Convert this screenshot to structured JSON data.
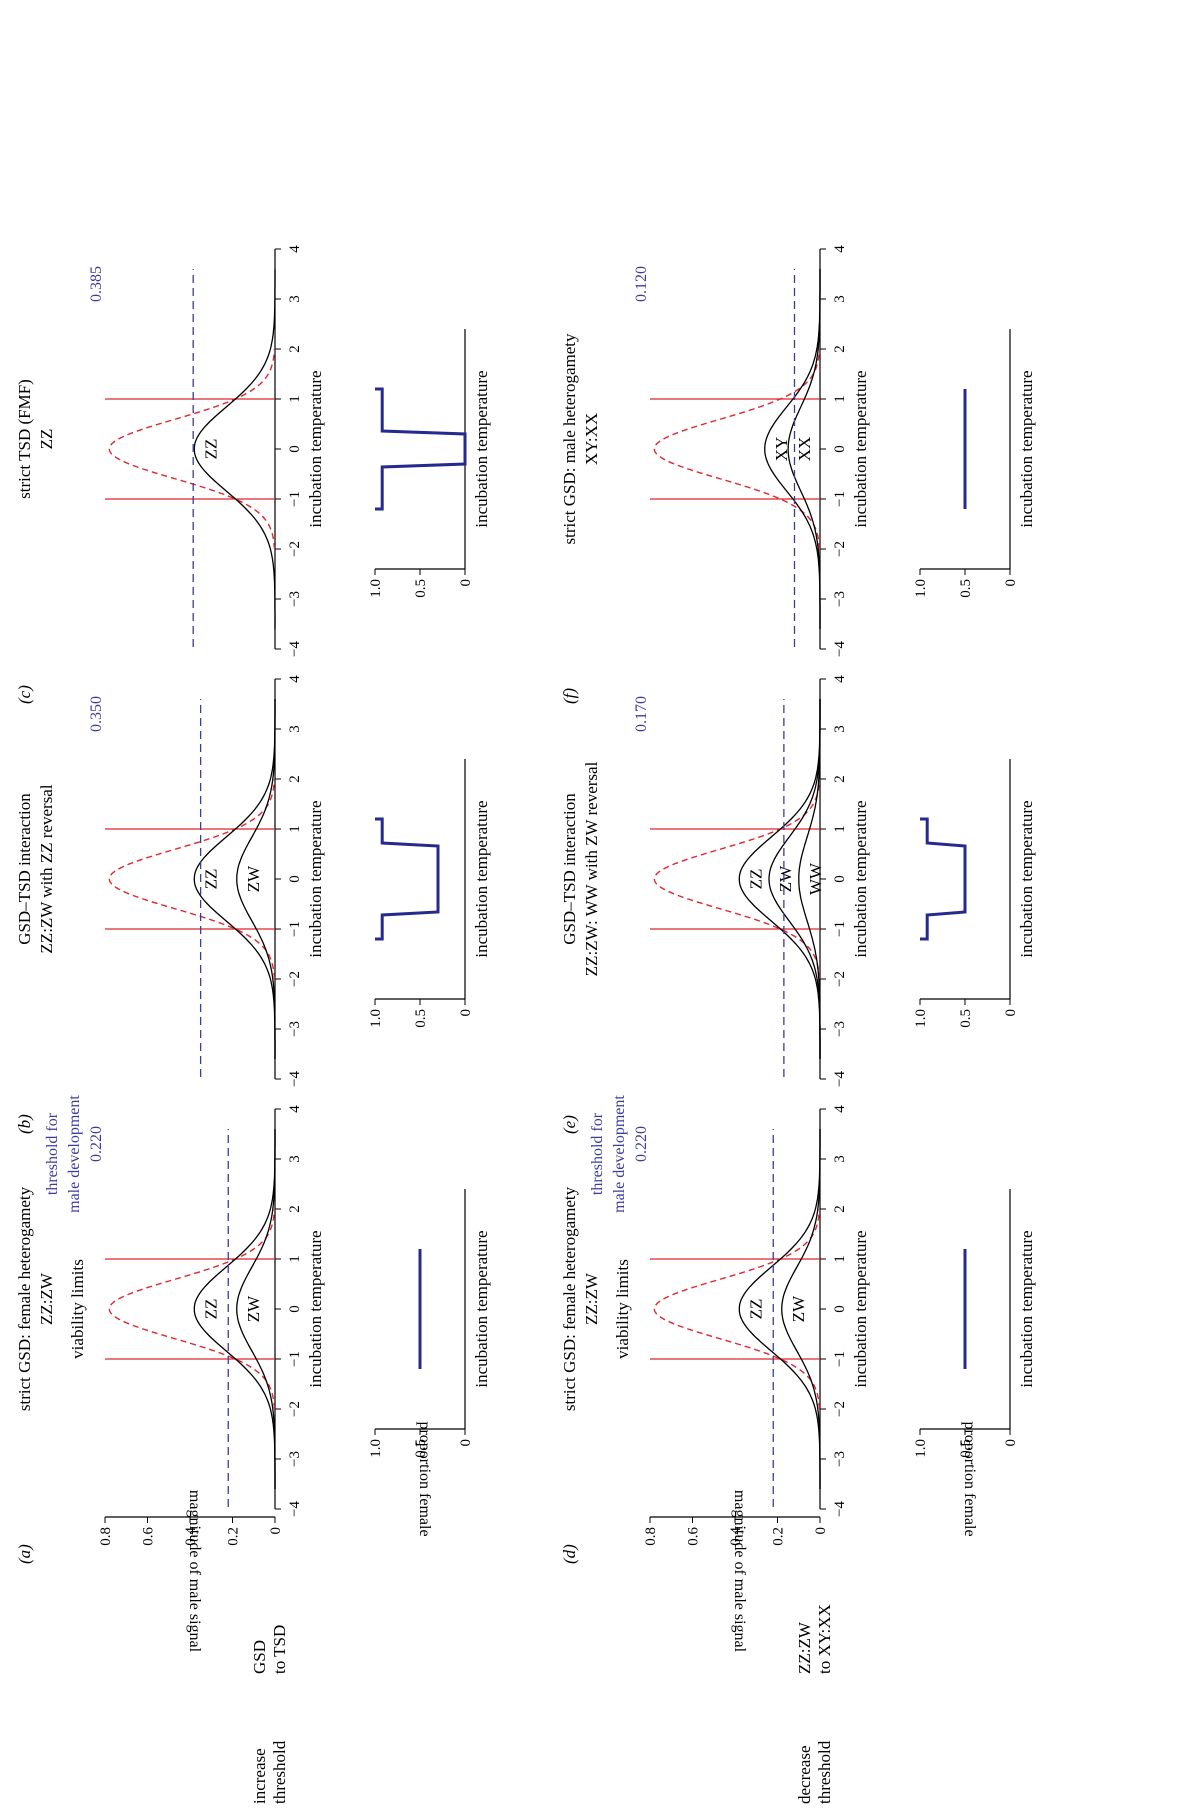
{
  "rows": [
    {
      "label_lines": [
        "increase",
        "threshold"
      ],
      "transition_lines": [
        "GSD",
        "to TSD"
      ]
    },
    {
      "label_lines": [
        "decrease",
        "threshold"
      ],
      "transition_lines": [
        "ZZ:ZW",
        "to XY:XX"
      ]
    }
  ],
  "xlabel": "incubation temperature",
  "ylabel_signal": "magnitude of male signal",
  "ylabel_prop": "proportion female",
  "viability_label": "viability limits",
  "threshold_label_lines": [
    "threshold for",
    "male development"
  ],
  "colors": {
    "curve": "#000000",
    "viability": "#e0262b",
    "limit": "#e0262b",
    "threshold": "#3b3c9e",
    "prop": "#262a8f"
  },
  "chart_data": [
    {
      "type": "line",
      "panel": "(a)",
      "title_lines": [
        "strict GSD: female heterogamety",
        "ZZ:ZW"
      ],
      "x": [
        -4,
        -3,
        -2,
        -1,
        0,
        1,
        2,
        3,
        4
      ],
      "xlim": [
        -4,
        4
      ],
      "ylim": [
        0,
        0.8
      ],
      "y_ticks": [
        "0",
        "0.2",
        "0.4",
        "0.6",
        "0.8"
      ],
      "viability_limits": [
        -1,
        1
      ],
      "threshold": 0.22,
      "threshold_text": "0.220",
      "series": [
        {
          "name": "ZZ",
          "peak": 0.38
        },
        {
          "name": "ZW",
          "peak": 0.18
        }
      ],
      "proportion_female": {
        "y_ticks": [
          "0",
          "0.5",
          "1.0"
        ],
        "segments": [
          [
            [
              -1,
              0.5
            ],
            [
              1,
              0.5
            ]
          ]
        ]
      }
    },
    {
      "type": "line",
      "panel": "(b)",
      "title_lines": [
        "GSD–TSD interaction",
        "ZZ:ZW with ZZ reversal"
      ],
      "x": [
        -4,
        -3,
        -2,
        -1,
        0,
        1,
        2,
        3,
        4
      ],
      "xlim": [
        -4,
        4
      ],
      "ylim": [
        0,
        0.8
      ],
      "viability_limits": [
        -1,
        1
      ],
      "threshold": 0.35,
      "threshold_text": "0.350",
      "series": [
        {
          "name": "ZZ",
          "peak": 0.38
        },
        {
          "name": "ZW",
          "peak": 0.18
        }
      ],
      "proportion_female": {
        "y_ticks": [
          "0",
          "0.5",
          "1.0"
        ],
        "segments": [
          [
            [
              -1,
              1.0
            ],
            [
              -1,
              0.92
            ],
            [
              -0.6,
              0.92
            ],
            [
              -0.55,
              0.3
            ],
            [
              0.55,
              0.3
            ],
            [
              0.6,
              0.92
            ],
            [
              1,
              0.92
            ],
            [
              1,
              1.0
            ]
          ]
        ]
      }
    },
    {
      "type": "line",
      "panel": "(c)",
      "title_lines": [
        "strict TSD (FMF)",
        "ZZ"
      ],
      "x": [
        -4,
        -3,
        -2,
        -1,
        0,
        1,
        2,
        3,
        4
      ],
      "xlim": [
        -4,
        4
      ],
      "ylim": [
        0,
        0.8
      ],
      "viability_limits": [
        -1,
        1
      ],
      "threshold": 0.385,
      "threshold_text": "0.385",
      "series": [
        {
          "name": "ZZ",
          "peak": 0.38
        }
      ],
      "proportion_female": {
        "y_ticks": [
          "0",
          "0.5",
          "1.0"
        ],
        "segments": [
          [
            [
              -1,
              1.0
            ],
            [
              -1,
              0.92
            ],
            [
              -0.3,
              0.92
            ],
            [
              -0.25,
              0.0
            ],
            [
              0.25,
              0.0
            ],
            [
              0.3,
              0.92
            ],
            [
              1,
              0.92
            ],
            [
              1,
              1.0
            ]
          ]
        ]
      }
    },
    {
      "type": "line",
      "panel": "(d)",
      "title_lines": [
        "strict GSD: female heterogamety",
        "ZZ:ZW"
      ],
      "x": [
        -4,
        -3,
        -2,
        -1,
        0,
        1,
        2,
        3,
        4
      ],
      "xlim": [
        -4,
        4
      ],
      "ylim": [
        0,
        0.8
      ],
      "y_ticks": [
        "0",
        "0.2",
        "0.4",
        "0.6",
        "0.8"
      ],
      "viability_limits": [
        -1,
        1
      ],
      "threshold": 0.22,
      "threshold_text": "0.220",
      "series": [
        {
          "name": "ZZ",
          "peak": 0.38
        },
        {
          "name": "ZW",
          "peak": 0.18
        }
      ],
      "proportion_female": {
        "y_ticks": [
          "0",
          "0.5",
          "1.0"
        ],
        "segments": [
          [
            [
              -1,
              0.5
            ],
            [
              1,
              0.5
            ]
          ]
        ]
      }
    },
    {
      "type": "line",
      "panel": "(e)",
      "title_lines": [
        "GSD–TSD interaction",
        "ZZ:ZW: WW with ZW reversal"
      ],
      "x": [
        -4,
        -3,
        -2,
        -1,
        0,
        1,
        2,
        3,
        4
      ],
      "xlim": [
        -4,
        4
      ],
      "ylim": [
        0,
        0.8
      ],
      "viability_limits": [
        -1,
        1
      ],
      "threshold": 0.17,
      "threshold_text": "0.170",
      "series": [
        {
          "name": "ZZ",
          "peak": 0.38
        },
        {
          "name": "ZW",
          "peak": 0.24
        },
        {
          "name": "WW",
          "peak": 0.1
        }
      ],
      "proportion_female": {
        "y_ticks": [
          "0",
          "0.5",
          "1.0"
        ],
        "segments": [
          [
            [
              -1,
              1.0
            ],
            [
              -1,
              0.92
            ],
            [
              -0.6,
              0.92
            ],
            [
              -0.55,
              0.5
            ],
            [
              0.55,
              0.5
            ],
            [
              0.6,
              0.92
            ],
            [
              1,
              0.92
            ],
            [
              1,
              1.0
            ]
          ]
        ]
      }
    },
    {
      "type": "line",
      "panel": "(f)",
      "title_lines": [
        "strict GSD: male heterogamety",
        "XY:XX"
      ],
      "x": [
        -4,
        -3,
        -2,
        -1,
        0,
        1,
        2,
        3,
        4
      ],
      "xlim": [
        -4,
        4
      ],
      "ylim": [
        0,
        0.8
      ],
      "viability_limits": [
        -1,
        1
      ],
      "threshold": 0.12,
      "threshold_text": "0.120",
      "series": [
        {
          "name": "XY",
          "peak": 0.26
        },
        {
          "name": "XX",
          "peak": 0.15
        }
      ],
      "proportion_female": {
        "y_ticks": [
          "0",
          "0.5",
          "1.0"
        ],
        "segments": [
          [
            [
              -1,
              0.5
            ],
            [
              1,
              0.5
            ]
          ]
        ]
      }
    }
  ]
}
